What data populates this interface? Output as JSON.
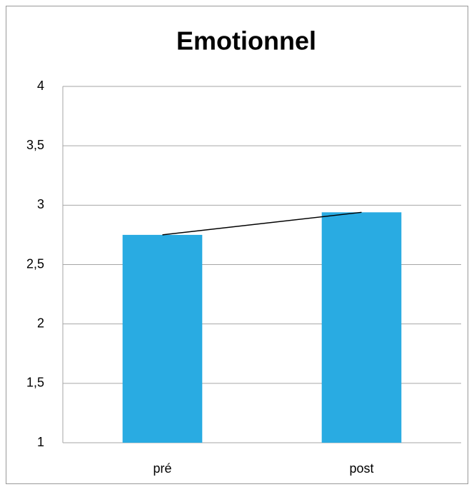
{
  "chart_data": {
    "type": "bar",
    "title": "Emotionnel",
    "categories": [
      "pré",
      "post"
    ],
    "values": [
      2.75,
      2.94
    ],
    "color": "#29abe2",
    "connector": true,
    "ylim": [
      1,
      4
    ],
    "yticks": [
      1,
      {
        "value": 1.5,
        "label": "1,5"
      },
      2,
      {
        "value": 2.5,
        "label": "2,5"
      },
      3,
      {
        "value": 3.5,
        "label": "3,5"
      },
      4
    ],
    "grid": true
  }
}
